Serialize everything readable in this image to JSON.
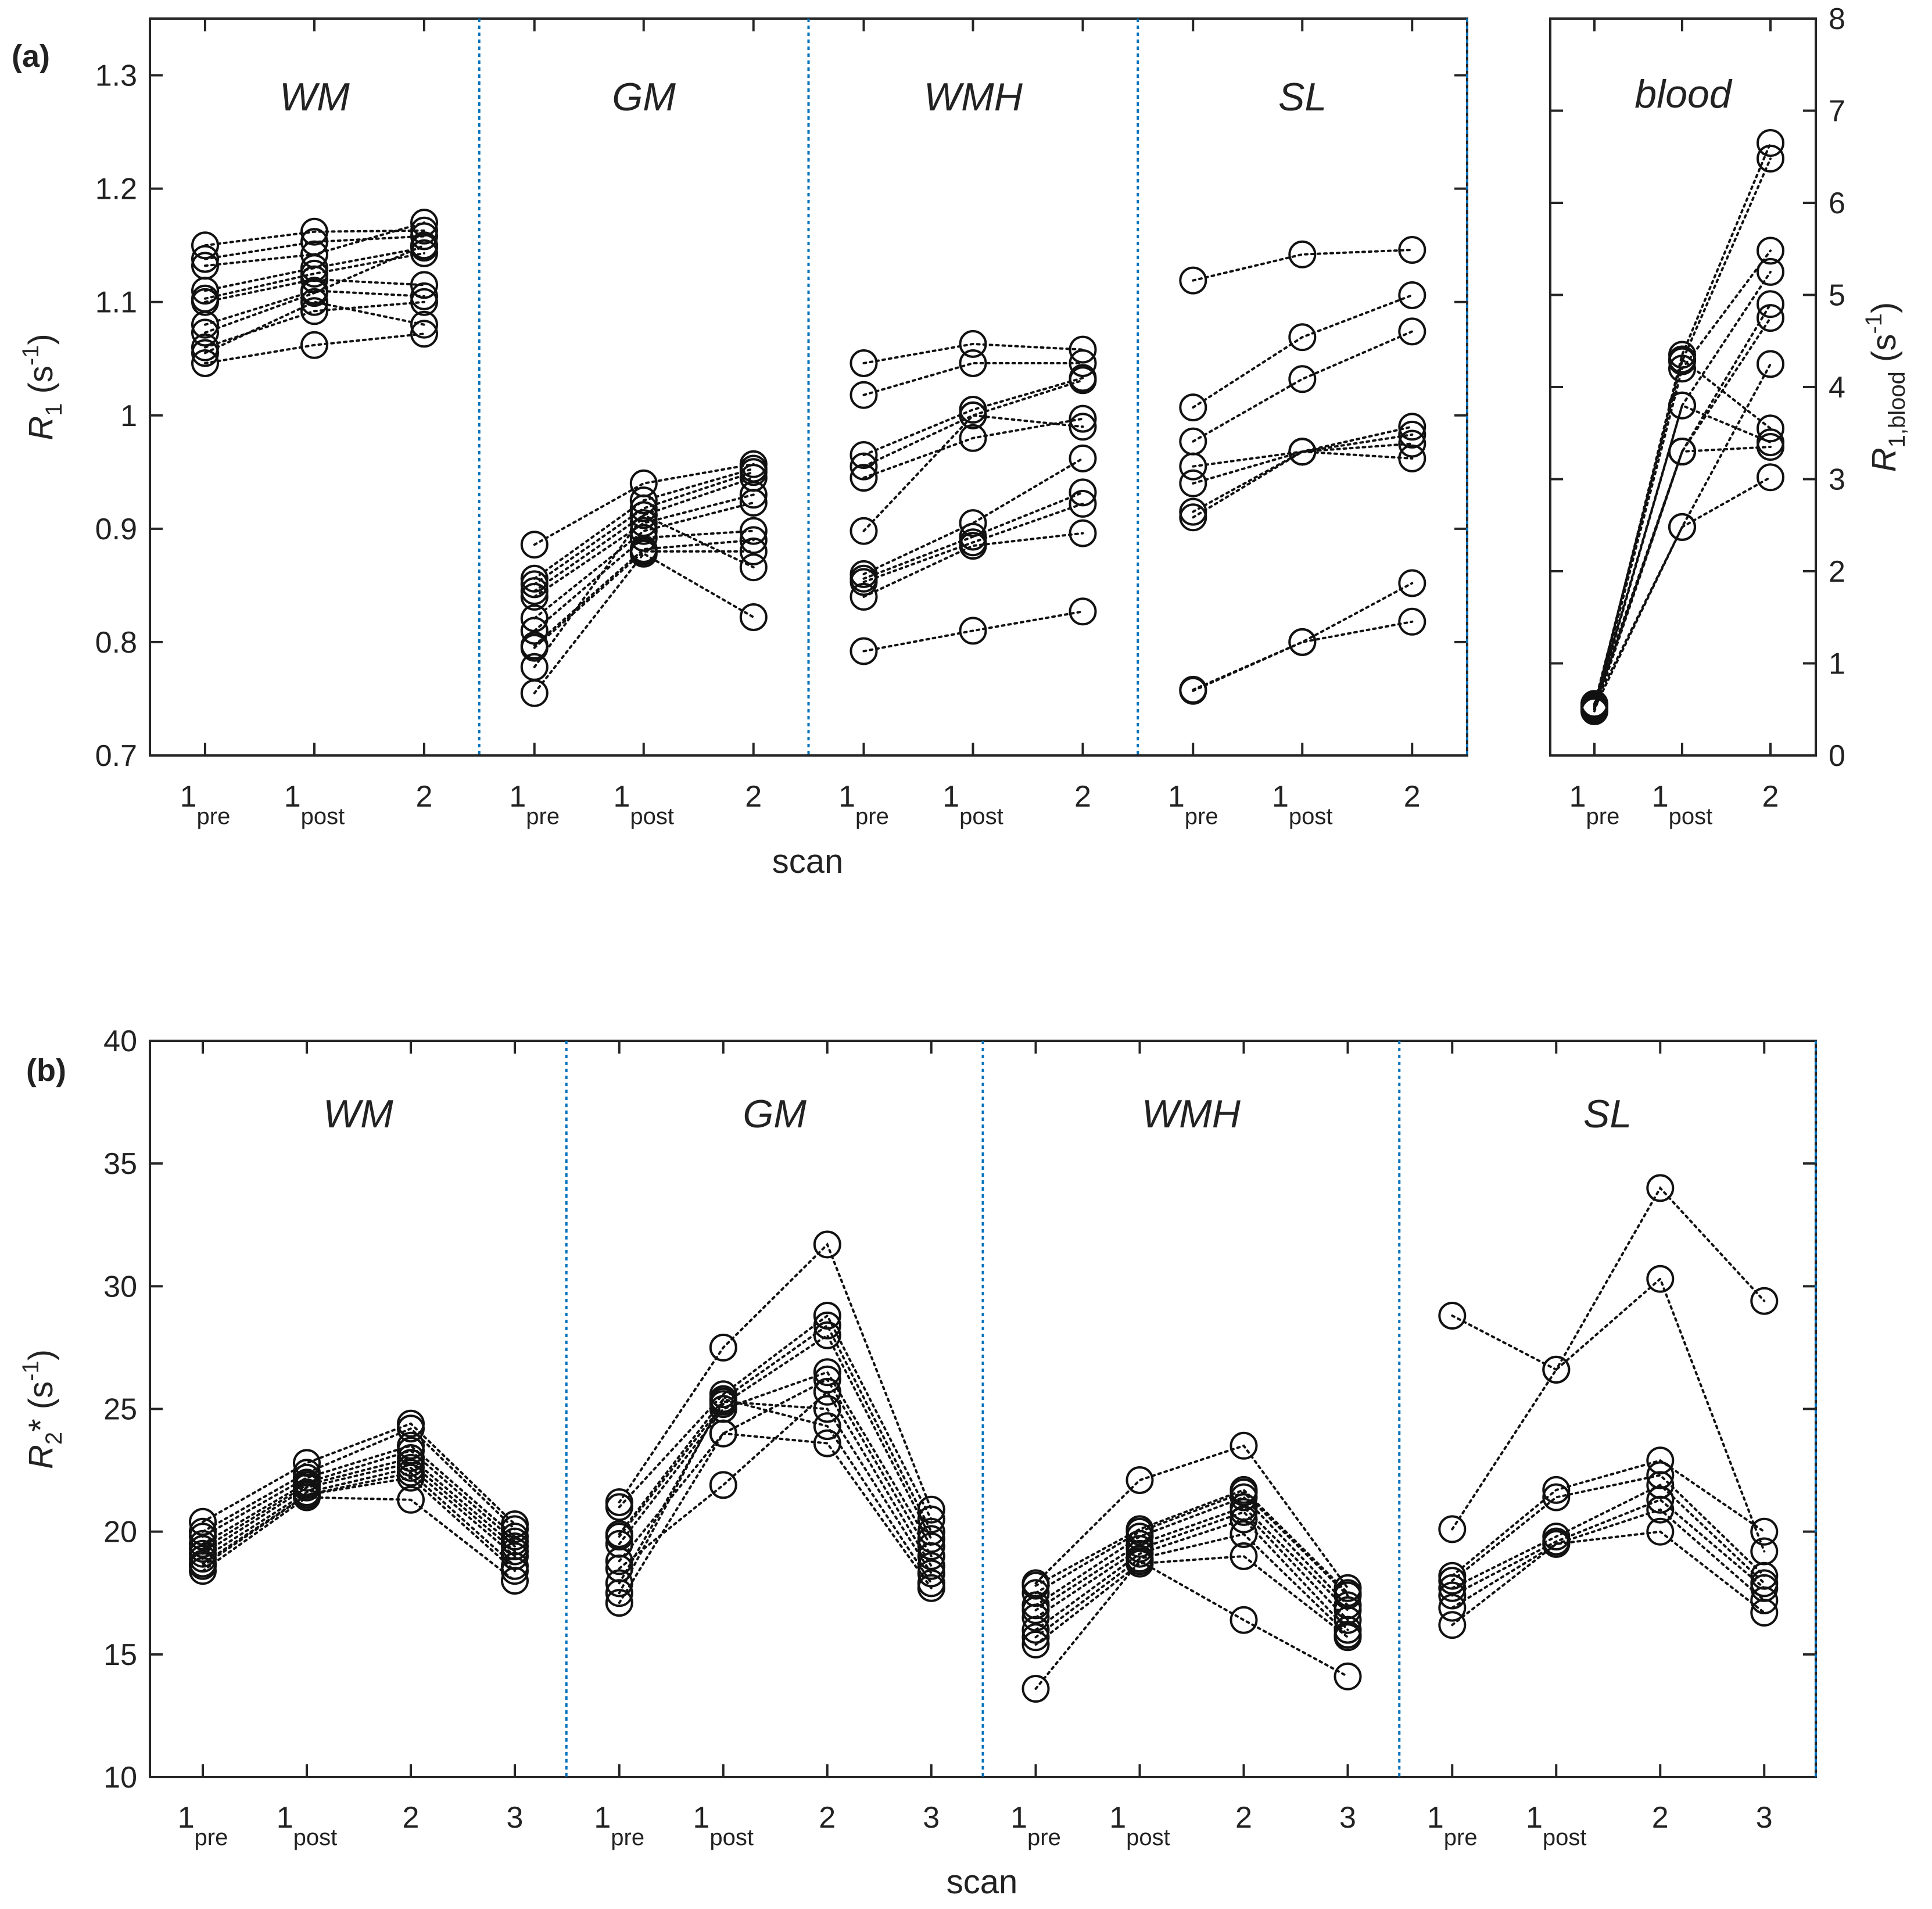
{
  "chart_data": [
    {
      "panel": "(a)",
      "type": "scatter",
      "subtype": "connected-dotplot",
      "xlabel": "scan",
      "ylabel": "R1 (s-1)",
      "ylabel_parts": {
        "main": "R",
        "sub": "1",
        "unit": " (s",
        "sup": "-1",
        "close": ")"
      },
      "ylim": [
        0.7,
        1.35
      ],
      "yticks": [
        "0.7",
        "0.8",
        "0.9",
        "1",
        "1.1",
        "1.2",
        "1.3"
      ],
      "right_axis": {
        "label": "R1,blood (s-1)",
        "label_parts": {
          "main": "R",
          "sub": "1,blood",
          "unit": " (s",
          "sup": "-1",
          "close": ")"
        },
        "ylim": [
          0,
          8
        ],
        "yticks": [
          "0",
          "1",
          "2",
          "3",
          "4",
          "5",
          "6",
          "7",
          "8"
        ]
      },
      "scans": [
        {
          "main": "1",
          "sub": "pre"
        },
        {
          "main": "1",
          "sub": "post"
        },
        {
          "main": "2",
          "sub": ""
        }
      ],
      "groups": [
        {
          "name": "WM",
          "subjects": [
            [
              1.15,
              1.162,
              1.163
            ],
            [
              1.138,
              1.153,
              1.158
            ],
            [
              1.132,
              1.142,
              1.17
            ],
            [
              1.11,
              1.13,
              1.148
            ],
            [
              1.103,
              1.125,
              1.143
            ],
            [
              1.1,
              1.12,
              1.115
            ],
            [
              1.08,
              1.11,
              1.105
            ],
            [
              1.073,
              1.108,
              1.15
            ],
            [
              1.06,
              1.092,
              1.1
            ],
            [
              1.055,
              1.1,
              1.08
            ],
            [
              1.046,
              1.062,
              1.072
            ]
          ]
        },
        {
          "name": "GM",
          "subjects": [
            [
              0.886,
              0.94,
              0.957
            ],
            [
              0.856,
              0.925,
              0.953
            ],
            [
              0.851,
              0.918,
              0.95
            ],
            [
              0.845,
              0.912,
              0.945
            ],
            [
              0.84,
              0.905,
              0.93
            ],
            [
              0.821,
              0.898,
              0.923
            ],
            [
              0.81,
              0.892,
              0.898
            ],
            [
              0.797,
              0.882,
              0.89
            ],
            [
              0.795,
              0.88,
              0.88
            ],
            [
              0.778,
              0.912,
              0.866
            ],
            [
              0.755,
              0.878,
              0.822
            ]
          ]
        },
        {
          "name": "WMH",
          "subjects": [
            [
              1.046,
              1.063,
              1.058
            ],
            [
              1.018,
              1.046,
              1.046
            ],
            [
              0.965,
              1.005,
              1.033
            ],
            [
              0.955,
              1.0,
              1.031
            ],
            [
              0.945,
              0.98,
              0.997
            ],
            [
              0.898,
              1.0,
              0.99
            ],
            [
              0.86,
              0.905,
              0.962
            ],
            [
              0.856,
              0.893,
              0.932
            ],
            [
              0.853,
              0.888,
              0.922
            ],
            [
              0.84,
              0.885,
              0.896
            ],
            [
              0.792,
              0.81,
              0.827
            ]
          ]
        },
        {
          "name": "SL",
          "subjects": [
            [
              1.119,
              1.142,
              1.146
            ],
            [
              1.007,
              1.069,
              1.106
            ],
            [
              0.977,
              1.032,
              1.074
            ],
            [
              0.955,
              0.968,
              0.99
            ],
            [
              0.94,
              0.968,
              0.983
            ],
            [
              0.915,
              0.968,
              0.975
            ],
            [
              0.91,
              0.968,
              0.962
            ],
            [
              0.758,
              0.8,
              0.852
            ],
            [
              0.757,
              0.8,
              0.818
            ]
          ]
        },
        {
          "name": "blood",
          "axis": "right",
          "subjects": [
            [
              0.52,
              4.35,
              6.65
            ],
            [
              0.55,
              4.28,
              6.48
            ],
            [
              0.5,
              4.2,
              5.48
            ],
            [
              0.53,
              3.8,
              5.25
            ],
            [
              0.48,
              3.3,
              4.9
            ],
            [
              0.56,
              3.3,
              4.75
            ],
            [
              0.51,
              2.48,
              4.25
            ],
            [
              0.54,
              4.3,
              3.55
            ],
            [
              0.5,
              3.8,
              3.4
            ],
            [
              0.52,
              3.3,
              3.35
            ],
            [
              0.55,
              2.48,
              3.02
            ]
          ]
        }
      ]
    },
    {
      "panel": "(b)",
      "type": "scatter",
      "subtype": "connected-dotplot",
      "xlabel": "scan",
      "ylabel": "R2* (s-1)",
      "ylabel_parts": {
        "main": "R",
        "sub": "2",
        "unit": "* (s",
        "sup": "-1",
        "close": ")"
      },
      "ylim": [
        10,
        40
      ],
      "yticks": [
        "10",
        "15",
        "20",
        "25",
        "30",
        "35",
        "40"
      ],
      "scans": [
        {
          "main": "1",
          "sub": "pre"
        },
        {
          "main": "1",
          "sub": "post"
        },
        {
          "main": "2",
          "sub": ""
        },
        {
          "main": "3",
          "sub": ""
        }
      ],
      "groups": [
        {
          "name": "WM",
          "subjects": [
            [
              20.4,
              22.8,
              24.4,
              20.3
            ],
            [
              20.0,
              22.4,
              24.2,
              20.1
            ],
            [
              19.8,
              22.2,
              23.5,
              19.8
            ],
            [
              19.5,
              22.0,
              23.3,
              19.6
            ],
            [
              19.3,
              21.9,
              23.0,
              19.4
            ],
            [
              19.1,
              21.8,
              22.8,
              19.2
            ],
            [
              18.9,
              21.6,
              22.6,
              19.0
            ],
            [
              18.7,
              21.5,
              22.4,
              18.6
            ],
            [
              18.6,
              21.5,
              22.2,
              18.4
            ],
            [
              18.4,
              21.4,
              21.3,
              18.0
            ]
          ]
        },
        {
          "name": "GM",
          "subjects": [
            [
              21.2,
              27.5,
              31.7,
              20.9
            ],
            [
              21.0,
              25.6,
              28.8,
              20.5
            ],
            [
              19.9,
              25.4,
              28.4,
              20.0
            ],
            [
              19.8,
              25.2,
              28.0,
              19.7
            ],
            [
              19.5,
              25.0,
              26.5,
              19.4
            ],
            [
              18.8,
              24.0,
              26.2,
              19.0
            ],
            [
              18.5,
              21.9,
              25.7,
              18.6
            ],
            [
              17.9,
              25.3,
              25.0,
              18.3
            ],
            [
              17.5,
              25.4,
              24.3,
              17.9
            ],
            [
              17.1,
              24.0,
              23.6,
              17.7
            ]
          ]
        },
        {
          "name": "WMH",
          "subjects": [
            [
              17.9,
              22.1,
              23.5,
              17.7
            ],
            [
              17.8,
              20.1,
              21.7,
              17.5
            ],
            [
              17.5,
              20.0,
              21.6,
              17.4
            ],
            [
              17.0,
              19.8,
              21.4,
              17.0
            ],
            [
              16.8,
              19.5,
              21.0,
              16.8
            ],
            [
              16.5,
              19.3,
              20.8,
              16.4
            ],
            [
              16.0,
              19.1,
              20.5,
              16.0
            ],
            [
              15.7,
              18.9,
              19.9,
              15.8
            ],
            [
              15.4,
              18.7,
              19.0,
              15.7
            ],
            [
              13.6,
              18.8,
              16.4,
              14.1
            ]
          ]
        },
        {
          "name": "SL",
          "subjects": [
            [
              28.8,
              26.6,
              34.0,
              29.4
            ],
            [
              20.1,
              26.6,
              30.3,
              19.2
            ],
            [
              18.2,
              21.7,
              22.9,
              20.0
            ],
            [
              18.0,
              21.4,
              22.3,
              18.2
            ],
            [
              17.7,
              19.8,
              21.9,
              17.9
            ],
            [
              17.4,
              19.6,
              21.3,
              17.7
            ],
            [
              16.9,
              19.5,
              20.9,
              17.2
            ],
            [
              16.2,
              19.5,
              20.0,
              16.7
            ]
          ]
        }
      ]
    }
  ],
  "styles": {
    "marker_color": "#111111",
    "line_color": "#111111",
    "separator_color": "#0072BD",
    "axis_color": "#262626",
    "text_color": "#222222"
  }
}
